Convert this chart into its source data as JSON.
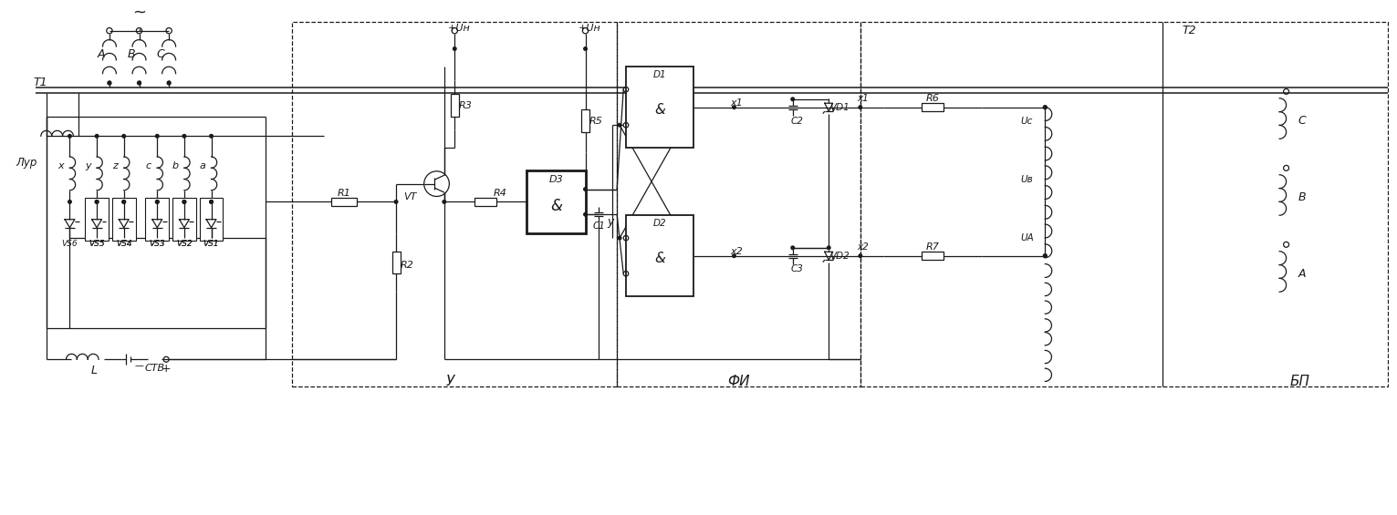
{
  "bg_color": "#ffffff",
  "line_color": "#1a1a1a",
  "fig_width": 15.31,
  "fig_height": 5.65,
  "dpi": 100,
  "coil_labels_top": [
    "A",
    "B",
    "C"
  ],
  "sec_labels": [
    "x",
    "y",
    "z",
    "c",
    "b",
    "a"
  ],
  "thy_labels": [
    "VS6",
    "VS5",
    "VS4",
    "VS3",
    "VS2",
    "VS1"
  ],
  "right_coil_labels": [
    "C",
    "B",
    "A"
  ],
  "section_labels": [
    "У",
    "ФИ",
    "БП"
  ],
  "component_labels": {
    "T1": "T1",
    "Lur": "Лур",
    "CTB": "СТВ",
    "L": "L",
    "R1": "R1",
    "R2": "R2",
    "R3": "R3",
    "R4": "R4",
    "R5": "R5",
    "R6": "R6",
    "R7": "R7",
    "VT": "VT",
    "D1": "D1",
    "D2": "D2",
    "D3": "D3",
    "C1": "C1",
    "C2": "C2",
    "C3": "C3",
    "VD1": "VD1",
    "VD2": "VD2",
    "X1": "x1",
    "X2": "x2",
    "T2": "T2",
    "Uc": "Uc",
    "Ub": "Uв",
    "Ua": "UА",
    "Un": "+Uн",
    "y_label": "y",
    "tilde": "~",
    "plus": "+"
  }
}
